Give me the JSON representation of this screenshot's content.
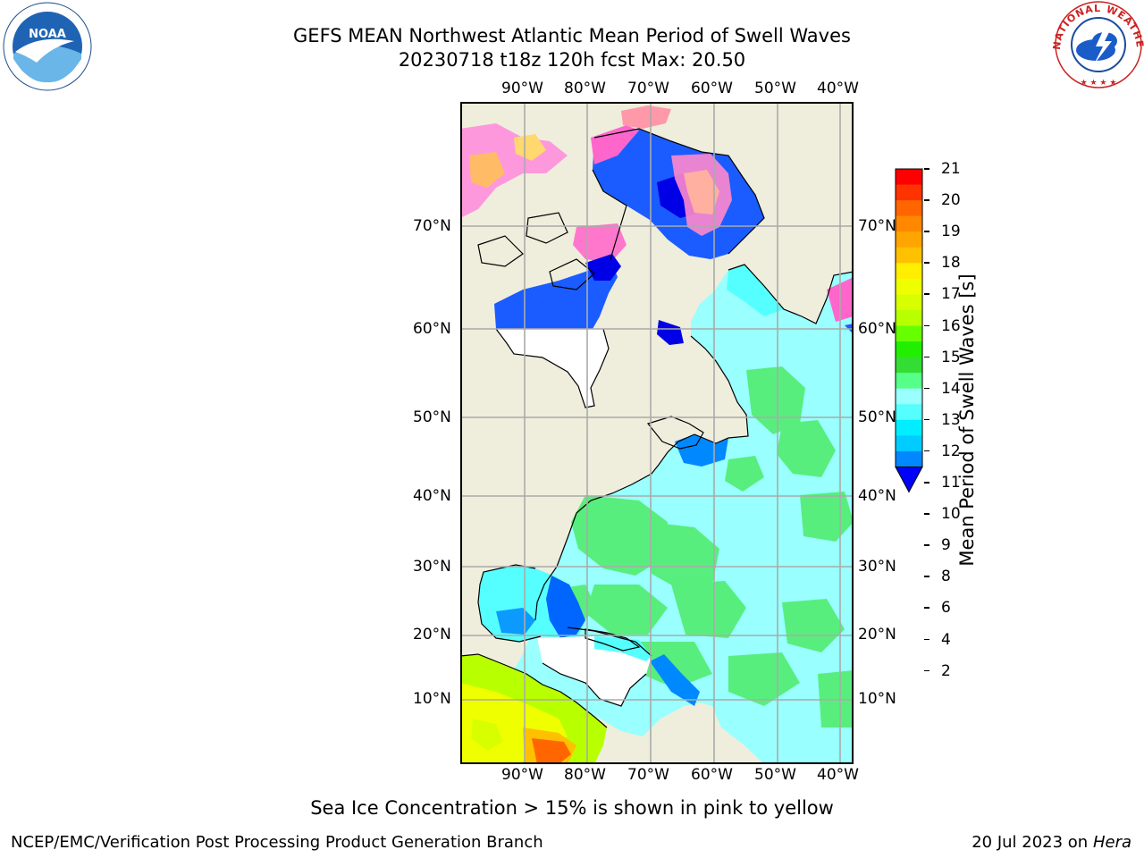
{
  "title": {
    "line1": "GEFS MEAN Northwest Atlantic Mean Period of Swell Waves",
    "line2": "20230718 t18z 120h fcst   Max: 20.50"
  },
  "logos": {
    "noara": "NOAA",
    "nws": "NATIONAL WEATHER SERVICE"
  },
  "map": {
    "lon_labels": [
      "90°W",
      "80°W",
      "70°W",
      "60°W",
      "50°W",
      "40°W"
    ],
    "lat_labels": [
      "70°N",
      "60°N",
      "50°N",
      "40°N",
      "30°N",
      "20°N",
      "10°N"
    ]
  },
  "colorbar": {
    "label": "Mean Period of Swell Waves [s]",
    "ticks": [
      "21",
      "20",
      "19",
      "18",
      "17",
      "16",
      "15",
      "14",
      "13",
      "12",
      "11",
      "10",
      "9",
      "8",
      "6",
      "4",
      "2"
    ],
    "colors": [
      "#ff0000",
      "#ff3300",
      "#ff6600",
      "#ff8800",
      "#ffa500",
      "#ffc000",
      "#ffee00",
      "#f0ff00",
      "#d8ff00",
      "#b8ff00",
      "#66ff00",
      "#22ee00",
      "#33dd33",
      "#55ff88",
      "#99ffff",
      "#55ffff",
      "#00eeff",
      "#00ccff",
      "#0088ff",
      "#0000ff"
    ]
  },
  "caption": "Sea Ice Concentration > 15% is shown in pink to yellow",
  "footer": {
    "left": "NCEP/EMC/Verification Post Processing Product Generation Branch",
    "right_prefix": "20 Jul 2023 on ",
    "right_host": "Hera"
  }
}
